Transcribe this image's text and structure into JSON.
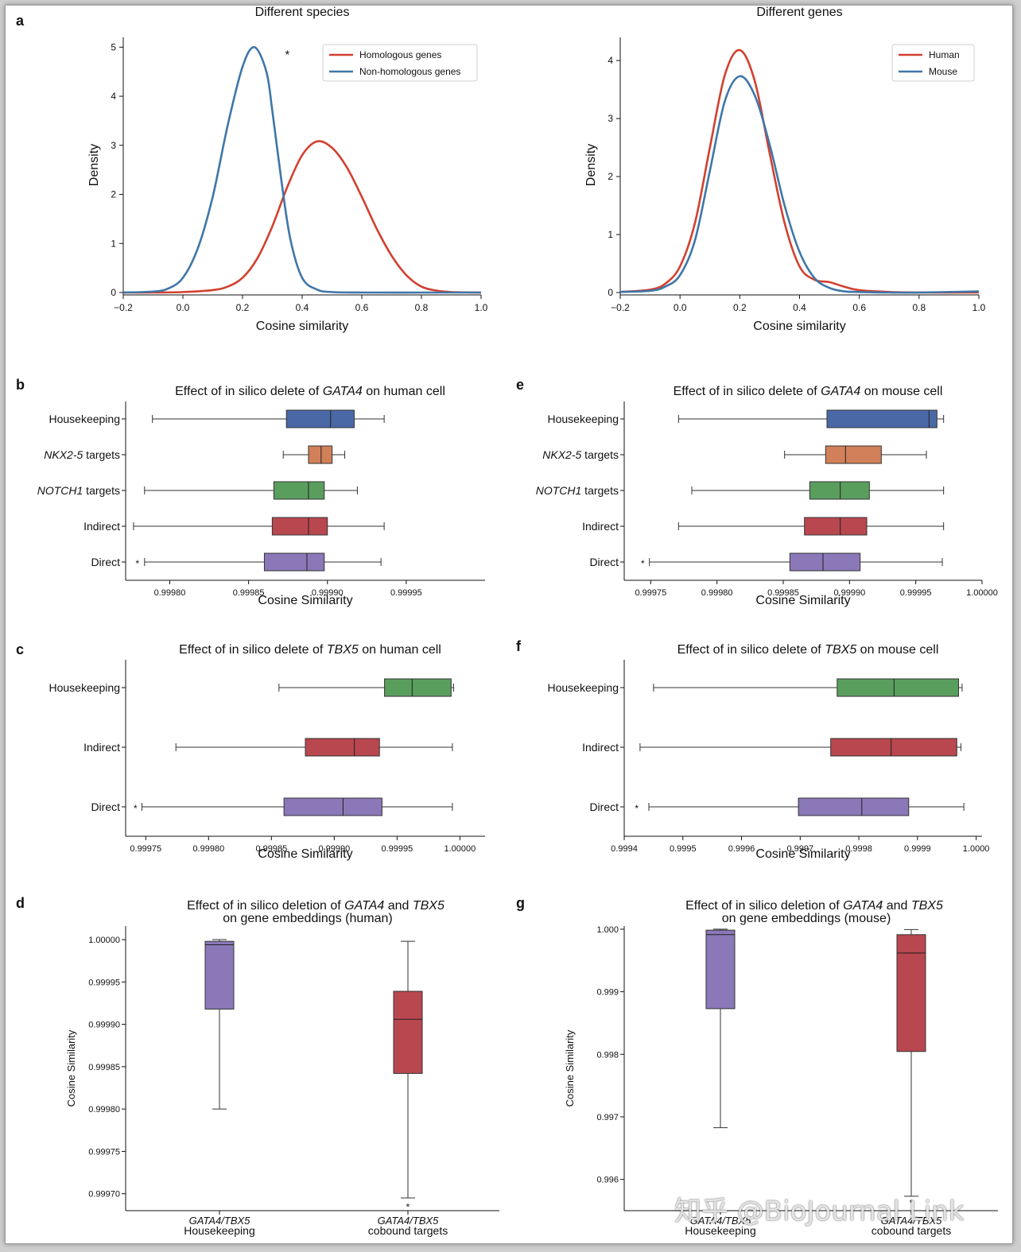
{
  "panel_labels": [
    "a",
    "b",
    "c",
    "d",
    "e",
    "f",
    "g"
  ],
  "watermark": "知乎 @BioJournal Link",
  "chart_data": [
    {
      "id": "a-left",
      "type": "line",
      "title": "Different species",
      "xlabel": "Cosine similarity",
      "ylabel": "Density",
      "xlim": [
        -0.2,
        1.0
      ],
      "ylim": [
        0,
        5.2
      ],
      "xticks": [
        -0.2,
        0.0,
        0.2,
        0.4,
        0.6,
        0.8,
        1.0
      ],
      "xtick_labels": [
        "−0.2",
        "0.0",
        "0.2",
        "0.4",
        "0.6",
        "0.8",
        "1.0"
      ],
      "yticks": [
        0,
        1,
        2,
        3,
        4,
        5
      ],
      "legend": "top-right",
      "annotation": "*",
      "annotation_at": [
        0.35,
        4.85
      ],
      "series": [
        {
          "name": "Homologous genes",
          "color": "#d2402f",
          "x": [
            -0.2,
            -0.1,
            0.0,
            0.1,
            0.15,
            0.2,
            0.25,
            0.3,
            0.35,
            0.4,
            0.45,
            0.5,
            0.55,
            0.6,
            0.65,
            0.7,
            0.75,
            0.8,
            0.85,
            0.9,
            1.0
          ],
          "y": [
            0,
            0,
            0.01,
            0.05,
            0.12,
            0.3,
            0.7,
            1.35,
            2.15,
            2.8,
            3.08,
            2.95,
            2.55,
            1.95,
            1.3,
            0.75,
            0.35,
            0.12,
            0.04,
            0.01,
            0
          ]
        },
        {
          "name": "Non-homologous genes",
          "color": "#3f76a8",
          "x": [
            -0.2,
            -0.1,
            -0.05,
            0.0,
            0.05,
            0.1,
            0.15,
            0.2,
            0.24,
            0.28,
            0.3,
            0.33,
            0.36,
            0.4,
            0.45,
            0.5,
            0.6,
            0.8,
            1.0
          ],
          "y": [
            0,
            0.02,
            0.08,
            0.3,
            0.9,
            1.95,
            3.4,
            4.6,
            5.0,
            4.5,
            3.7,
            2.3,
            1.1,
            0.3,
            0.06,
            0.01,
            0,
            0,
            0
          ]
        }
      ]
    },
    {
      "id": "a-right",
      "type": "line",
      "title": "Different genes",
      "xlabel": "Cosine similarity",
      "ylabel": "Density",
      "xlim": [
        -0.2,
        1.0
      ],
      "ylim": [
        0,
        4.4
      ],
      "xticks": [
        -0.2,
        0.0,
        0.2,
        0.4,
        0.6,
        0.8,
        1.0
      ],
      "xtick_labels": [
        "−0.2",
        "0.0",
        "0.2",
        "0.4",
        "0.6",
        "0.8",
        "1.0"
      ],
      "yticks": [
        0,
        1,
        2,
        3,
        4
      ],
      "legend": "top-right",
      "series": [
        {
          "name": "Human",
          "color": "#d2402f",
          "x": [
            -0.2,
            -0.1,
            -0.05,
            0.0,
            0.05,
            0.1,
            0.15,
            0.2,
            0.25,
            0.3,
            0.35,
            0.4,
            0.45,
            0.5,
            0.55,
            0.6,
            0.7,
            0.8,
            1.0
          ],
          "y": [
            0.01,
            0.05,
            0.15,
            0.45,
            1.2,
            2.5,
            3.75,
            4.18,
            3.65,
            2.4,
            1.2,
            0.45,
            0.22,
            0.18,
            0.1,
            0.04,
            0.01,
            0,
            0
          ]
        },
        {
          "name": "Mouse",
          "color": "#3f76a8",
          "x": [
            -0.2,
            -0.1,
            -0.05,
            0.0,
            0.05,
            0.1,
            0.15,
            0.2,
            0.25,
            0.3,
            0.35,
            0.4,
            0.45,
            0.5,
            0.55,
            0.6,
            0.7,
            0.8,
            1.0
          ],
          "y": [
            0.01,
            0.03,
            0.1,
            0.3,
            0.9,
            2.1,
            3.3,
            3.73,
            3.4,
            2.55,
            1.5,
            0.7,
            0.25,
            0.08,
            0.02,
            0.01,
            0,
            0,
            0.02
          ]
        }
      ]
    },
    {
      "id": "b",
      "type": "box",
      "orientation": "horizontal",
      "title_parts": [
        "Effect of in silico delete of ",
        "GATA4",
        " on human cell"
      ],
      "xlabel": "Cosine Similarity",
      "xlim": [
        0.999772,
        1.0
      ],
      "xticks": [
        0.9998,
        0.99985,
        0.9999,
        0.99995
      ],
      "xtick_labels": [
        "0.99980",
        "0.99985",
        "0.99990",
        "0.99995"
      ],
      "categories": [
        {
          "label": "Housekeeping",
          "italic_prefix": "",
          "color": "#4a68a6",
          "whislo": 0.999789,
          "q1": 0.999874,
          "med": 0.999902,
          "q3": 0.999917,
          "whishi": 0.999936
        },
        {
          "label": " targets",
          "italic_prefix": "NKX2-5",
          "color": "#d2805a",
          "whislo": 0.999872,
          "q1": 0.999888,
          "med": 0.999896,
          "q3": 0.999903,
          "whishi": 0.999911
        },
        {
          "label": " targets",
          "italic_prefix": "NOTCH1",
          "color": "#5a9e5e",
          "whislo": 0.999784,
          "q1": 0.999866,
          "med": 0.999888,
          "q3": 0.999898,
          "whishi": 0.999919
        },
        {
          "label": "Indirect",
          "italic_prefix": "",
          "color": "#b9474f",
          "whislo": 0.999777,
          "q1": 0.999865,
          "med": 0.999888,
          "q3": 0.9999,
          "whishi": 0.999936
        },
        {
          "label": "Direct",
          "italic_prefix": "",
          "color": "#8b78b8",
          "whislo": 0.999784,
          "q1": 0.99986,
          "med": 0.999887,
          "q3": 0.999898,
          "whishi": 0.999934,
          "outlier": 0.999782
        }
      ]
    },
    {
      "id": "e",
      "type": "box",
      "orientation": "horizontal",
      "title_parts": [
        "Effect of in silico delete of ",
        "GATA4",
        " on mouse cell"
      ],
      "xlabel": "Cosine Similarity",
      "xlim": [
        0.99973,
        1.0
      ],
      "xticks": [
        0.99975,
        0.9998,
        0.99985,
        0.9999,
        0.99995,
        1.0
      ],
      "xtick_labels": [
        "0.99975",
        "0.99980",
        "0.99985",
        "0.99990",
        "0.99995",
        "1.00000"
      ],
      "categories": [
        {
          "label": "Housekeeping",
          "italic_prefix": "",
          "color": "#4a68a6",
          "whislo": 0.999771,
          "q1": 0.999883,
          "med": 0.99996,
          "q3": 0.999966,
          "whishi": 0.999971
        },
        {
          "label": " targets",
          "italic_prefix": "NKX2-5",
          "color": "#d2805a",
          "whislo": 0.999851,
          "q1": 0.999882,
          "med": 0.999897,
          "q3": 0.999924,
          "whishi": 0.999958
        },
        {
          "label": " targets",
          "italic_prefix": "NOTCH1",
          "color": "#5a9e5e",
          "whislo": 0.999781,
          "q1": 0.99987,
          "med": 0.999893,
          "q3": 0.999915,
          "whishi": 0.999971
        },
        {
          "label": "Indirect",
          "italic_prefix": "",
          "color": "#b9474f",
          "whislo": 0.999771,
          "q1": 0.999866,
          "med": 0.999893,
          "q3": 0.999913,
          "whishi": 0.999971
        },
        {
          "label": "Direct",
          "italic_prefix": "",
          "color": "#8b78b8",
          "whislo": 0.999749,
          "q1": 0.999855,
          "med": 0.99988,
          "q3": 0.999908,
          "whishi": 0.99997,
          "outlier": 0.999747
        }
      ]
    },
    {
      "id": "c",
      "type": "box",
      "orientation": "horizontal",
      "title_parts": [
        "Effect of in silico delete of ",
        "TBX5",
        " on human cell"
      ],
      "xlabel": "Cosine Similarity",
      "xlim": [
        0.999734,
        1.00002
      ],
      "xticks": [
        0.99975,
        0.9998,
        0.99985,
        0.9999,
        0.99995,
        1.0
      ],
      "xtick_labels": [
        "0.99975",
        "0.99980",
        "0.99985",
        "0.99990",
        "0.99995",
        "1.00000"
      ],
      "categories": [
        {
          "label": "Housekeeping",
          "italic_prefix": "",
          "color": "#5a9e5e",
          "whislo": 0.999856,
          "q1": 0.99994,
          "med": 0.999962,
          "q3": 0.999993,
          "whishi": 0.999995
        },
        {
          "label": "Indirect",
          "italic_prefix": "",
          "color": "#b9474f",
          "whislo": 0.999774,
          "q1": 0.999877,
          "med": 0.999916,
          "q3": 0.999936,
          "whishi": 0.999994
        },
        {
          "label": "Direct",
          "italic_prefix": "",
          "color": "#8b78b8",
          "whislo": 0.999747,
          "q1": 0.99986,
          "med": 0.999907,
          "q3": 0.999938,
          "whishi": 0.999994,
          "outlier": 0.999745
        }
      ]
    },
    {
      "id": "f",
      "type": "box",
      "orientation": "horizontal",
      "title_parts": [
        "Effect of in silico delete of ",
        "TBX5",
        " on mouse cell"
      ],
      "xlabel": "Cosine Similarity",
      "xlim": [
        0.9994,
        1.00001
      ],
      "xticks": [
        0.9994,
        0.9995,
        0.9996,
        0.9997,
        0.9998,
        0.9999,
        1.0
      ],
      "xtick_labels": [
        "0.9994",
        "0.9995",
        "0.9996",
        "0.9997",
        "0.9998",
        "0.9999",
        "1.0000"
      ],
      "categories": [
        {
          "label": "Housekeeping",
          "italic_prefix": "",
          "color": "#5a9e5e",
          "whislo": 0.99945,
          "q1": 0.999763,
          "med": 0.99986,
          "q3": 0.99997,
          "whishi": 0.999976
        },
        {
          "label": "Indirect",
          "italic_prefix": "",
          "color": "#b9474f",
          "whislo": 0.999427,
          "q1": 0.999752,
          "med": 0.999855,
          "q3": 0.999967,
          "whishi": 0.999974
        },
        {
          "label": "Direct",
          "italic_prefix": "",
          "color": "#8b78b8",
          "whislo": 0.999442,
          "q1": 0.999697,
          "med": 0.999805,
          "q3": 0.999885,
          "whishi": 0.999979,
          "outlier": 0.999428
        }
      ]
    },
    {
      "id": "d",
      "type": "box",
      "orientation": "vertical",
      "title_parts": [
        "Effect of in silico deletion of ",
        "GATA4",
        " and ",
        "TBX5"
      ],
      "title_line2": "on gene embeddings (human)",
      "ylabel": "Cosine Similarity",
      "ylim": [
        0.99968,
        1.000016
      ],
      "yticks": [
        0.9997,
        0.99975,
        0.9998,
        0.99985,
        0.9999,
        0.99995,
        1.0
      ],
      "ytick_labels": [
        "0.99970",
        "0.99975",
        "0.99980",
        "0.99985",
        "0.99990",
        "0.99995",
        "1.00000"
      ],
      "categories": [
        {
          "label_italic": "GATA4/TBX5",
          "label": "Housekeeping",
          "color": "#8b78b8",
          "whislo": 0.9998,
          "q1": 0.999918,
          "med": 0.999994,
          "q3": 0.999998,
          "whishi": 1.0
        },
        {
          "label_italic": "GATA4/TBX5",
          "label": "cobound targets",
          "color": "#b9474f",
          "whislo": 0.999695,
          "q1": 0.999842,
          "med": 0.999906,
          "q3": 0.999939,
          "whishi": 0.999998,
          "outlier": 0.99969
        }
      ]
    },
    {
      "id": "g",
      "type": "box",
      "orientation": "vertical",
      "title_parts": [
        "Effect of in silico deletion of ",
        "GATA4",
        " and ",
        "TBX5"
      ],
      "title_line2": "on gene embeddings (mouse)",
      "ylabel": "Cosine Similarity",
      "ylim": [
        0.9955,
        1.00005
      ],
      "yticks": [
        0.996,
        0.997,
        0.998,
        0.999,
        1.0
      ],
      "ytick_labels": [
        "0.996",
        "0.997",
        "0.998",
        "0.999",
        "1.000"
      ],
      "categories": [
        {
          "label_italic": "GATA4/TBX5",
          "label": "Housekeeping",
          "color": "#8b78b8",
          "whislo": 0.996827,
          "q1": 0.99873,
          "med": 0.999913,
          "q3": 0.999985,
          "whishi": 1.0
        },
        {
          "label_italic": "GATA4/TBX5",
          "label": "cobound targets",
          "color": "#b9474f",
          "whislo": 0.99573,
          "q1": 0.998045,
          "med": 0.99962,
          "q3": 0.999913,
          "whishi": 0.999995,
          "outlier": 0.9957
        }
      ]
    }
  ]
}
